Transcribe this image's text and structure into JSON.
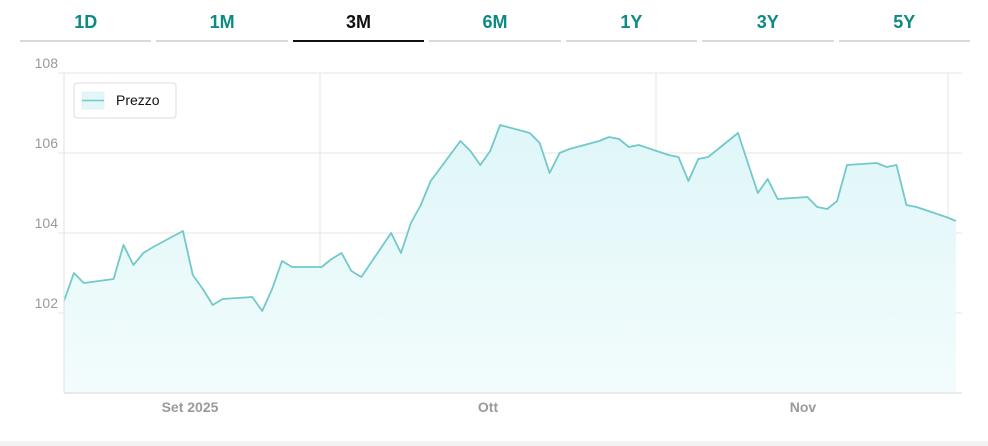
{
  "tabs": [
    {
      "label": "1D",
      "active": false
    },
    {
      "label": "1M",
      "active": false
    },
    {
      "label": "3M",
      "active": true
    },
    {
      "label": "6M",
      "active": false
    },
    {
      "label": "1Y",
      "active": false
    },
    {
      "label": "3Y",
      "active": false
    },
    {
      "label": "5Y",
      "active": false
    }
  ],
  "colors": {
    "accent": "#0d8a84",
    "line": "#72c9c9",
    "fill_top": "#dff6f8",
    "fill_bottom": "#f3fcfc",
    "grid": "#e6e6e6"
  },
  "chart_data": {
    "type": "area",
    "title": "",
    "xlabel": "",
    "ylabel": "",
    "ylim": [
      100,
      108
    ],
    "yticks": [
      102,
      104,
      106,
      108
    ],
    "x_range": [
      "2025-08-20",
      "2025-11-18"
    ],
    "xticks": [
      {
        "label": "Set 2025",
        "date": "2025-09-01"
      },
      {
        "label": "Ott",
        "date": "2025-10-01"
      },
      {
        "label": "Nov",
        "date": "2025-11-01"
      }
    ],
    "legend": {
      "position": "top-left",
      "entries": [
        "Prezzo"
      ]
    },
    "grid": true,
    "series": [
      {
        "name": "Prezzo",
        "x": [
          "2025-08-20",
          "2025-08-21",
          "2025-08-22",
          "2025-08-25",
          "2025-08-26",
          "2025-08-27",
          "2025-08-28",
          "2025-08-29",
          "2025-09-01",
          "2025-09-02",
          "2025-09-03",
          "2025-09-04",
          "2025-09-05",
          "2025-09-08",
          "2025-09-09",
          "2025-09-10",
          "2025-09-11",
          "2025-09-12",
          "2025-09-15",
          "2025-09-16",
          "2025-09-17",
          "2025-09-18",
          "2025-09-19",
          "2025-09-22",
          "2025-09-23",
          "2025-09-24",
          "2025-09-25",
          "2025-09-26",
          "2025-09-29",
          "2025-09-30",
          "2025-10-01",
          "2025-10-02",
          "2025-10-03",
          "2025-10-06",
          "2025-10-07",
          "2025-10-08",
          "2025-10-09",
          "2025-10-10",
          "2025-10-13",
          "2025-10-14",
          "2025-10-15",
          "2025-10-16",
          "2025-10-17",
          "2025-10-20",
          "2025-10-21",
          "2025-10-22",
          "2025-10-23",
          "2025-10-24",
          "2025-10-27",
          "2025-10-28",
          "2025-10-29",
          "2025-10-30",
          "2025-10-31",
          "2025-11-03",
          "2025-11-04",
          "2025-11-05",
          "2025-11-06",
          "2025-11-07",
          "2025-11-10",
          "2025-11-11",
          "2025-11-12",
          "2025-11-13",
          "2025-11-14",
          "2025-11-17",
          "2025-11-18"
        ],
        "y": [
          102.3,
          103.0,
          102.75,
          102.85,
          103.7,
          103.2,
          103.5,
          103.65,
          104.05,
          102.95,
          102.6,
          102.2,
          102.35,
          102.4,
          102.05,
          102.6,
          103.3,
          103.15,
          103.15,
          103.35,
          103.5,
          103.05,
          102.9,
          104.0,
          103.5,
          104.25,
          104.7,
          105.3,
          106.3,
          106.05,
          105.7,
          106.05,
          106.7,
          106.5,
          106.25,
          105.5,
          106.0,
          106.1,
          106.3,
          106.4,
          106.35,
          106.15,
          106.2,
          105.95,
          105.9,
          105.3,
          105.85,
          105.9,
          106.5,
          105.75,
          105.0,
          105.35,
          104.85,
          104.9,
          104.65,
          104.6,
          104.8,
          105.7,
          105.75,
          105.65,
          105.7,
          104.7,
          104.65,
          104.4,
          104.3
        ]
      }
    ]
  }
}
